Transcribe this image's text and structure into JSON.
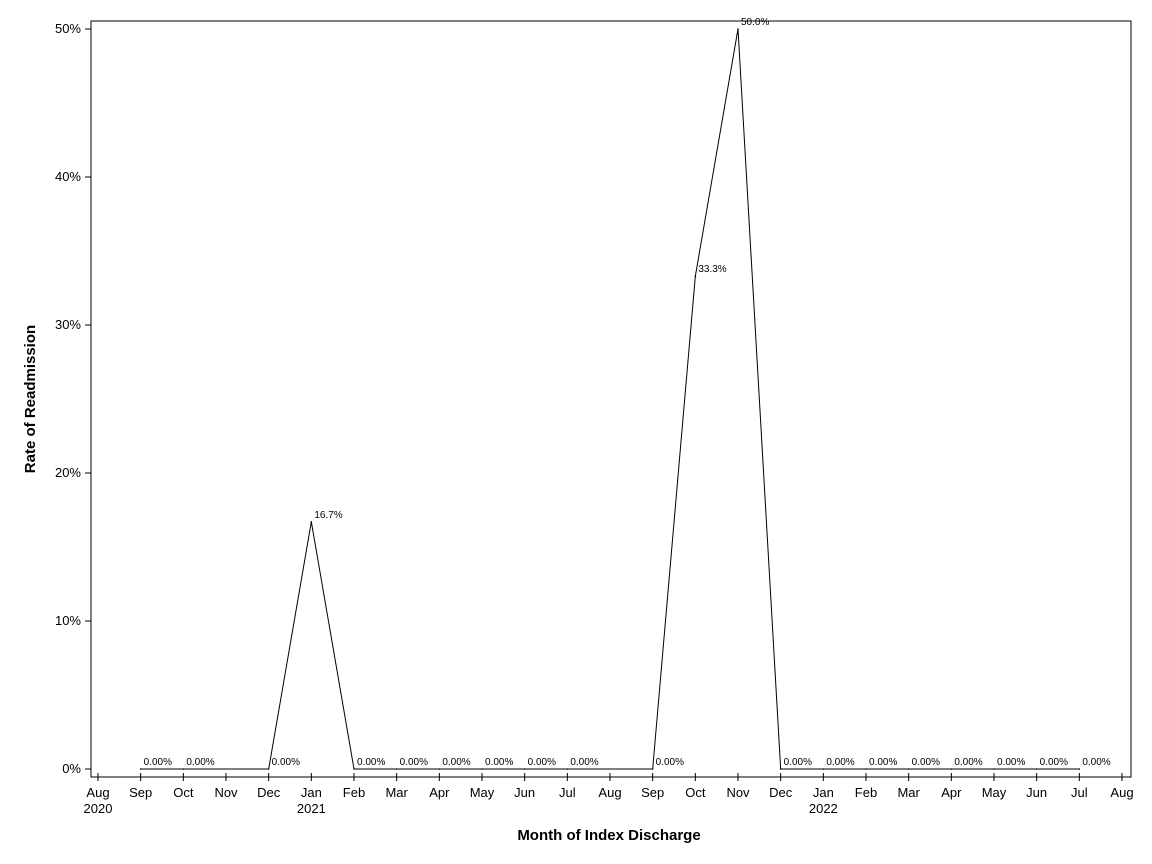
{
  "chart_data": {
    "type": "line",
    "title": "",
    "xlabel": "Month of Index Discharge",
    "ylabel": "Rate of Readmission",
    "ylim": [
      0,
      0.5
    ],
    "yticks": [
      {
        "value": 0,
        "label": "0%"
      },
      {
        "value": 0.1,
        "label": "10%"
      },
      {
        "value": 0.2,
        "label": "20%"
      },
      {
        "value": 0.3,
        "label": "30%"
      },
      {
        "value": 0.4,
        "label": "40%"
      },
      {
        "value": 0.5,
        "label": "50%"
      }
    ],
    "xticks": [
      {
        "date": "2020-08",
        "label": "Aug",
        "year": "2020"
      },
      {
        "date": "2020-09",
        "label": "Sep",
        "year": ""
      },
      {
        "date": "2020-10",
        "label": "Oct",
        "year": ""
      },
      {
        "date": "2020-11",
        "label": "Nov",
        "year": ""
      },
      {
        "date": "2020-12",
        "label": "Dec",
        "year": ""
      },
      {
        "date": "2021-01",
        "label": "Jan",
        "year": "2021"
      },
      {
        "date": "2021-02",
        "label": "Feb",
        "year": ""
      },
      {
        "date": "2021-03",
        "label": "Mar",
        "year": ""
      },
      {
        "date": "2021-04",
        "label": "Apr",
        "year": ""
      },
      {
        "date": "2021-05",
        "label": "May",
        "year": ""
      },
      {
        "date": "2021-06",
        "label": "Jun",
        "year": ""
      },
      {
        "date": "2021-07",
        "label": "Jul",
        "year": ""
      },
      {
        "date": "2021-08",
        "label": "Aug",
        "year": ""
      },
      {
        "date": "2021-09",
        "label": "Sep",
        "year": ""
      },
      {
        "date": "2021-10",
        "label": "Oct",
        "year": ""
      },
      {
        "date": "2021-11",
        "label": "Nov",
        "year": ""
      },
      {
        "date": "2021-12",
        "label": "Dec",
        "year": ""
      },
      {
        "date": "2022-01",
        "label": "Jan",
        "year": "2022"
      },
      {
        "date": "2022-02",
        "label": "Feb",
        "year": ""
      },
      {
        "date": "2022-03",
        "label": "Mar",
        "year": ""
      },
      {
        "date": "2022-04",
        "label": "Apr",
        "year": ""
      },
      {
        "date": "2022-05",
        "label": "May",
        "year": ""
      },
      {
        "date": "2022-06",
        "label": "Jun",
        "year": ""
      },
      {
        "date": "2022-07",
        "label": "Jul",
        "year": ""
      },
      {
        "date": "2022-08",
        "label": "Aug",
        "year": ""
      }
    ],
    "series": [
      {
        "color": "#000000",
        "points": [
          {
            "date": "2020-09",
            "value": 0,
            "label": "0.00%"
          },
          {
            "date": "2020-10",
            "value": 0,
            "label": "0.00%"
          },
          {
            "date": "2020-12",
            "value": 0,
            "label": "0.00%"
          },
          {
            "date": "2021-01",
            "value": 0.167,
            "label": "16.7%"
          },
          {
            "date": "2021-02",
            "value": 0,
            "label": "0.00%"
          },
          {
            "date": "2021-03",
            "value": 0,
            "label": "0.00%"
          },
          {
            "date": "2021-04",
            "value": 0,
            "label": "0.00%"
          },
          {
            "date": "2021-05",
            "value": 0,
            "label": "0.00%"
          },
          {
            "date": "2021-06",
            "value": 0,
            "label": "0.00%"
          },
          {
            "date": "2021-07",
            "value": 0,
            "label": "0.00%"
          },
          {
            "date": "2021-09",
            "value": 0,
            "label": "0.00%"
          },
          {
            "date": "2021-10",
            "value": 0.333,
            "label": "33.3%"
          },
          {
            "date": "2021-11",
            "value": 0.5,
            "label": "50.0%"
          },
          {
            "date": "2021-12",
            "value": 0,
            "label": "0.00%"
          },
          {
            "date": "2022-01",
            "value": 0,
            "label": "0.00%"
          },
          {
            "date": "2022-02",
            "value": 0,
            "label": "0.00%"
          },
          {
            "date": "2022-03",
            "value": 0,
            "label": "0.00%"
          },
          {
            "date": "2022-04",
            "value": 0,
            "label": "0.00%"
          },
          {
            "date": "2022-05",
            "value": 0,
            "label": "0.00%"
          },
          {
            "date": "2022-06",
            "value": 0,
            "label": "0.00%"
          },
          {
            "date": "2022-07",
            "value": 0,
            "label": "0.00%"
          }
        ]
      }
    ],
    "grid": false,
    "legend": "none"
  }
}
